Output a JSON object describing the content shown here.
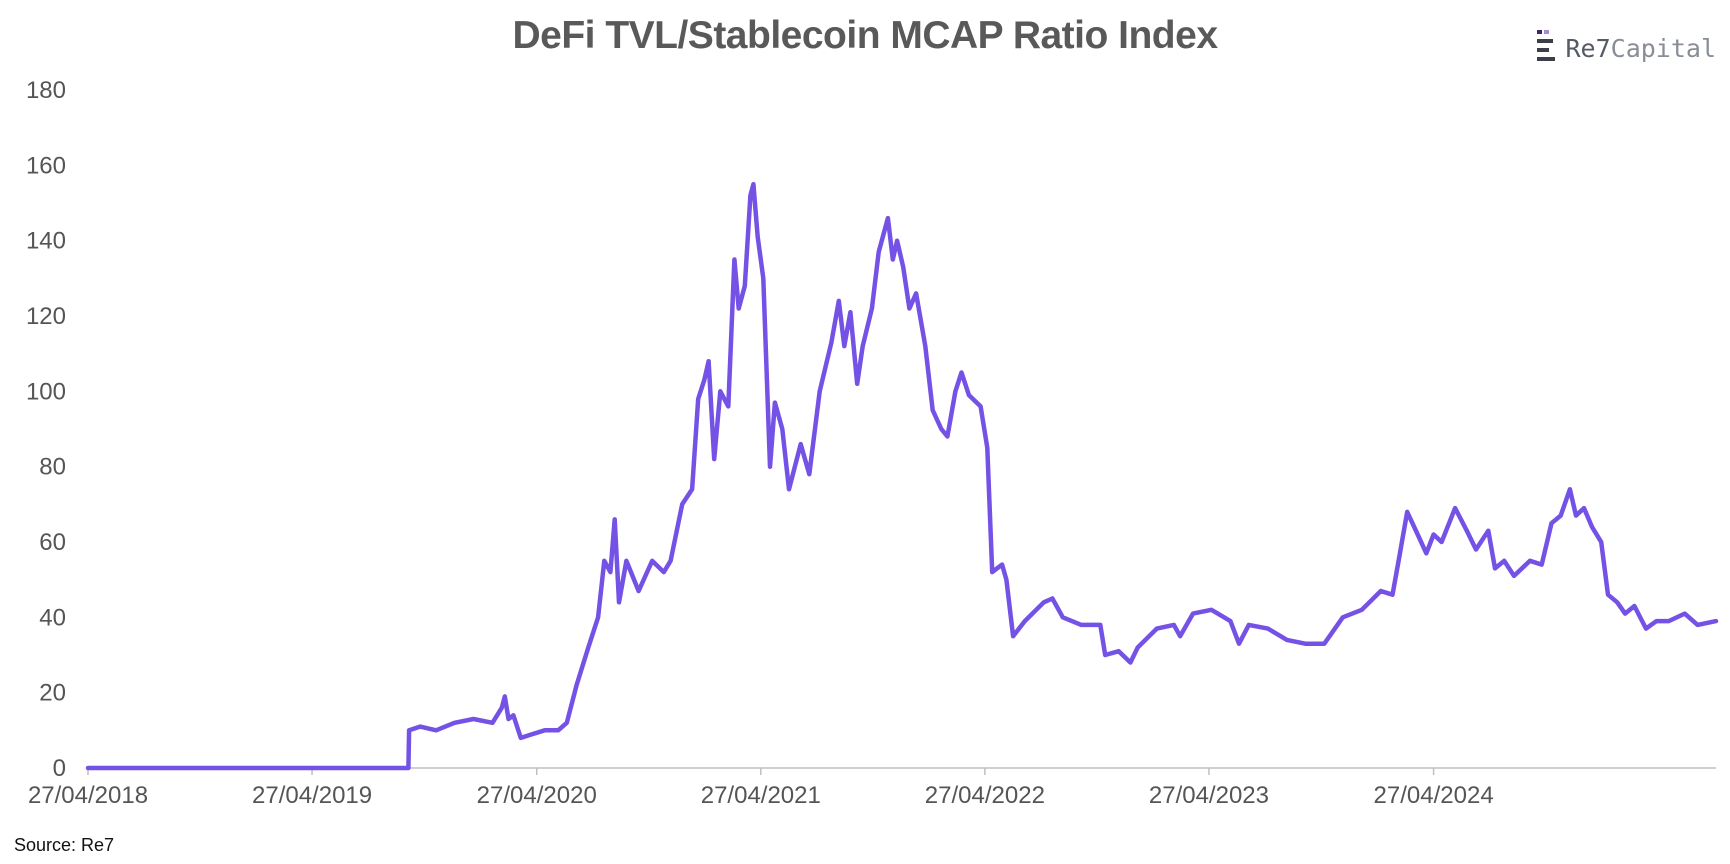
{
  "source": "Source: Re7",
  "logo": {
    "text_strong": "Re7",
    "text_light": "Capital"
  },
  "colors": {
    "line": "#7552E6",
    "axis": "#bfbfbf",
    "tick_text": "#555555"
  },
  "chart_data": {
    "type": "line",
    "title": "DeFi TVL/Stablecoin MCAP Ratio Index",
    "xlabel": "",
    "ylabel": "",
    "ylim": [
      0,
      180
    ],
    "yticks": [
      0,
      20,
      40,
      60,
      80,
      100,
      120,
      140,
      160,
      180
    ],
    "xlim": [
      "2018-04-27",
      "2025-07-31"
    ],
    "xticks": [
      "27/04/2018",
      "27/04/2019",
      "27/04/2020",
      "27/04/2021",
      "27/04/2022",
      "27/04/2023",
      "27/04/2024"
    ],
    "grid": false,
    "legend": false,
    "series": [
      {
        "name": "DeFi TVL/Stablecoin MCAP Ratio Index",
        "points": [
          [
            "2018-04-27",
            0
          ],
          [
            "2019-10-01",
            0
          ],
          [
            "2019-10-02",
            10
          ],
          [
            "2019-10-20",
            11
          ],
          [
            "2019-11-15",
            10
          ],
          [
            "2019-12-15",
            12
          ],
          [
            "2020-01-15",
            13
          ],
          [
            "2020-02-15",
            12
          ],
          [
            "2020-03-01",
            16
          ],
          [
            "2020-03-06",
            19
          ],
          [
            "2020-03-12",
            13
          ],
          [
            "2020-03-20",
            14
          ],
          [
            "2020-04-01",
            8
          ],
          [
            "2020-04-20",
            9
          ],
          [
            "2020-05-10",
            10
          ],
          [
            "2020-06-01",
            10
          ],
          [
            "2020-06-15",
            12
          ],
          [
            "2020-07-01",
            22
          ],
          [
            "2020-07-20",
            32
          ],
          [
            "2020-08-05",
            40
          ],
          [
            "2020-08-15",
            55
          ],
          [
            "2020-08-25",
            52
          ],
          [
            "2020-09-01",
            66
          ],
          [
            "2020-09-08",
            44
          ],
          [
            "2020-09-20",
            55
          ],
          [
            "2020-10-10",
            47
          ],
          [
            "2020-11-01",
            55
          ],
          [
            "2020-11-20",
            52
          ],
          [
            "2020-12-01",
            55
          ],
          [
            "2020-12-20",
            70
          ],
          [
            "2021-01-05",
            74
          ],
          [
            "2021-01-15",
            98
          ],
          [
            "2021-01-25",
            103
          ],
          [
            "2021-02-01",
            108
          ],
          [
            "2021-02-10",
            82
          ],
          [
            "2021-02-20",
            100
          ],
          [
            "2021-03-05",
            96
          ],
          [
            "2021-03-15",
            135
          ],
          [
            "2021-03-22",
            122
          ],
          [
            "2021-04-01",
            128
          ],
          [
            "2021-04-10",
            152
          ],
          [
            "2021-04-15",
            155
          ],
          [
            "2021-04-22",
            141
          ],
          [
            "2021-05-01",
            130
          ],
          [
            "2021-05-12",
            80
          ],
          [
            "2021-05-20",
            97
          ],
          [
            "2021-06-01",
            90
          ],
          [
            "2021-06-12",
            74
          ],
          [
            "2021-07-01",
            86
          ],
          [
            "2021-07-15",
            78
          ],
          [
            "2021-08-01",
            100
          ],
          [
            "2021-08-20",
            113
          ],
          [
            "2021-09-01",
            124
          ],
          [
            "2021-09-10",
            112
          ],
          [
            "2021-09-20",
            121
          ],
          [
            "2021-10-01",
            102
          ],
          [
            "2021-10-10",
            112
          ],
          [
            "2021-10-25",
            122
          ],
          [
            "2021-11-05",
            137
          ],
          [
            "2021-11-20",
            146
          ],
          [
            "2021-11-28",
            135
          ],
          [
            "2021-12-05",
            140
          ],
          [
            "2021-12-15",
            133
          ],
          [
            "2021-12-25",
            122
          ],
          [
            "2022-01-05",
            126
          ],
          [
            "2022-01-20",
            112
          ],
          [
            "2022-02-01",
            95
          ],
          [
            "2022-02-15",
            90
          ],
          [
            "2022-02-25",
            88
          ],
          [
            "2022-03-10",
            100
          ],
          [
            "2022-03-20",
            105
          ],
          [
            "2022-04-01",
            99
          ],
          [
            "2022-04-20",
            96
          ],
          [
            "2022-05-01",
            85
          ],
          [
            "2022-05-09",
            52
          ],
          [
            "2022-05-25",
            54
          ],
          [
            "2022-06-01",
            50
          ],
          [
            "2022-06-12",
            35
          ],
          [
            "2022-07-01",
            39
          ],
          [
            "2022-08-01",
            44
          ],
          [
            "2022-08-15",
            45
          ],
          [
            "2022-09-01",
            40
          ],
          [
            "2022-10-01",
            38
          ],
          [
            "2022-11-01",
            38
          ],
          [
            "2022-11-09",
            30
          ],
          [
            "2022-12-01",
            31
          ],
          [
            "2022-12-20",
            28
          ],
          [
            "2023-01-01",
            32
          ],
          [
            "2023-02-01",
            37
          ],
          [
            "2023-03-01",
            38
          ],
          [
            "2023-03-11",
            35
          ],
          [
            "2023-04-01",
            41
          ],
          [
            "2023-05-01",
            42
          ],
          [
            "2023-06-01",
            39
          ],
          [
            "2023-06-15",
            33
          ],
          [
            "2023-07-01",
            38
          ],
          [
            "2023-08-01",
            37
          ],
          [
            "2023-09-01",
            34
          ],
          [
            "2023-10-01",
            33
          ],
          [
            "2023-11-01",
            33
          ],
          [
            "2023-12-01",
            40
          ],
          [
            "2024-01-01",
            42
          ],
          [
            "2024-02-01",
            47
          ],
          [
            "2024-02-20",
            46
          ],
          [
            "2024-03-01",
            55
          ],
          [
            "2024-03-15",
            68
          ],
          [
            "2024-04-01",
            62
          ],
          [
            "2024-04-15",
            57
          ],
          [
            "2024-04-27",
            62
          ],
          [
            "2024-05-10",
            60
          ],
          [
            "2024-06-01",
            69
          ],
          [
            "2024-06-20",
            63
          ],
          [
            "2024-07-05",
            58
          ],
          [
            "2024-07-25",
            63
          ],
          [
            "2024-08-05",
            53
          ],
          [
            "2024-08-20",
            55
          ],
          [
            "2024-09-05",
            51
          ],
          [
            "2024-10-01",
            55
          ],
          [
            "2024-10-20",
            54
          ],
          [
            "2024-11-05",
            65
          ],
          [
            "2024-11-20",
            67
          ],
          [
            "2024-12-05",
            74
          ],
          [
            "2024-12-15",
            67
          ],
          [
            "2024-12-28",
            69
          ],
          [
            "2025-01-10",
            64
          ],
          [
            "2025-01-25",
            60
          ],
          [
            "2025-02-05",
            46
          ],
          [
            "2025-02-20",
            44
          ],
          [
            "2025-03-05",
            41
          ],
          [
            "2025-03-20",
            43
          ],
          [
            "2025-04-08",
            37
          ],
          [
            "2025-04-25",
            39
          ],
          [
            "2025-05-15",
            39
          ],
          [
            "2025-06-10",
            41
          ],
          [
            "2025-07-01",
            38
          ],
          [
            "2025-07-31",
            39
          ]
        ]
      }
    ]
  }
}
